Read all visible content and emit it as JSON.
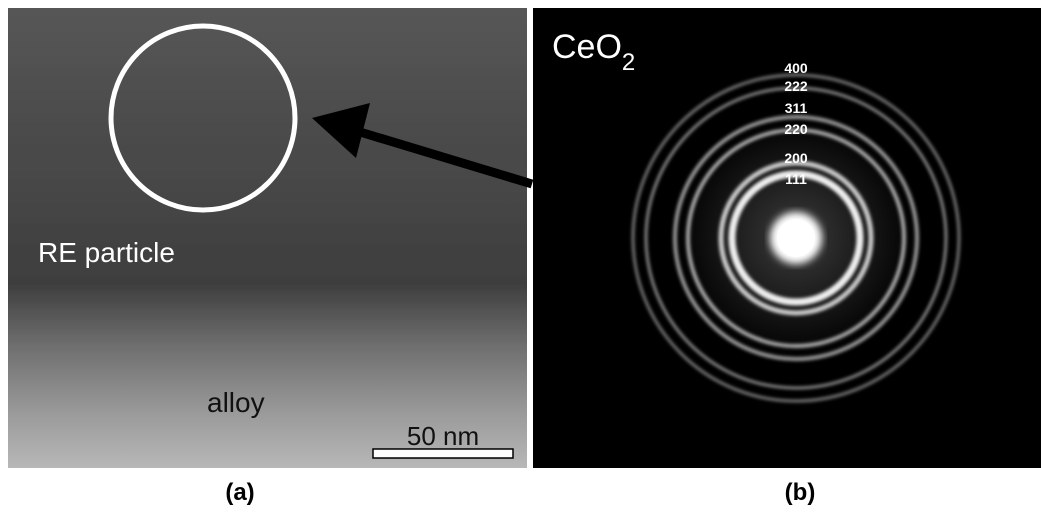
{
  "panel_a": {
    "region_label": "RE particle",
    "matrix_label": "alloy",
    "scale_bar": "50 nm",
    "caption": "(a)"
  },
  "panel_b": {
    "phase": {
      "formula": "CeO",
      "subscript": "2"
    },
    "rings": [
      "400",
      "222",
      "311",
      "220",
      "200",
      "111"
    ],
    "caption": "(b)"
  }
}
